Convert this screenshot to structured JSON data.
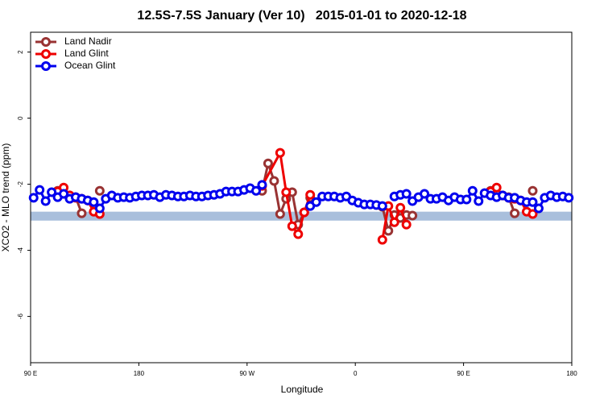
{
  "chart_data": {
    "type": "line",
    "title": "12.5S-7.5S January (Ver 10)   2015-01-01 to 2020-12-18",
    "xlabel": "Longitude",
    "ylabel": "XCO2 - MLO trend (ppm)",
    "xlim": [
      90,
      540
    ],
    "ylim": [
      -7.4,
      2.6
    ],
    "xticks": [
      {
        "value": 90,
        "label": "90 E"
      },
      180,
      {
        "value": 270,
        "label": "90 W"
      },
      {
        "value": 360,
        "label": "0"
      },
      {
        "value": 450,
        "label": "90 E"
      },
      {
        "value": 540,
        "label": "180"
      }
    ],
    "yticks": [
      2,
      0,
      -2,
      -4,
      -6
    ],
    "legend": "top-left",
    "band": {
      "ylim": [
        -3.1,
        -2.83
      ],
      "color": "#a9bfdc"
    },
    "series": [
      {
        "name": "Land Nadir",
        "color": "#993333",
        "x": [
          112.5,
          117.5,
          122.5,
          127.5,
          132.5,
          140,
          147.5,
          220,
          282.5,
          287.5,
          292.5,
          297.5,
          302.5,
          307.5,
          312.5,
          317.5,
          322.5,
          350,
          382.5,
          387.5,
          392.5,
          397.5,
          402.5,
          407.5,
          440,
          472.5,
          477.5,
          482.5,
          487.5,
          492.5,
          500,
          507.5
        ],
        "values": [
          -2.2,
          -2.29,
          -2.34,
          -2.39,
          -2.88,
          null,
          -2.2,
          null,
          -2.2,
          -1.37,
          -1.9,
          -2.9,
          -2.44,
          -2.24,
          -3.22,
          -2.85,
          -2.41,
          null,
          -2.68,
          -3.41,
          -2.93,
          -3.02,
          -2.93,
          -2.95,
          null,
          -2.2,
          -2.29,
          -2.34,
          -2.39,
          -2.88,
          null,
          -2.2
        ]
      },
      {
        "name": "Land Glint",
        "color": "#ee0000",
        "x": [
          112.5,
          117.5,
          122.5,
          127.5,
          132.5,
          137.5,
          142.5,
          147.5,
          220,
          282.5,
          297.5,
          302.5,
          307.5,
          312.5,
          317.5,
          322.5,
          350,
          382.5,
          387.5,
          392.5,
          397.5,
          402.5,
          440,
          472.5,
          477.5,
          482.5,
          487.5,
          492.5,
          497.5,
          502.5,
          507.5
        ],
        "values": [
          -2.22,
          -2.1,
          -2.34,
          -2.41,
          -2.44,
          -2.49,
          -2.83,
          -2.9,
          null,
          -2.05,
          -1.05,
          -2.24,
          -3.27,
          -3.51,
          -2.85,
          -2.32,
          null,
          -3.68,
          -2.66,
          -3.15,
          -2.71,
          -3.22,
          null,
          -2.22,
          -2.1,
          -2.34,
          -2.41,
          -2.44,
          -2.49,
          -2.83,
          -2.9
        ]
      },
      {
        "name": "Ocean Glint",
        "color": "#0000ee",
        "x": [
          92.5,
          97.5,
          102.5,
          107.5,
          112.5,
          117.5,
          122.5,
          127.5,
          132.5,
          137.5,
          142.5,
          147.5,
          152.5,
          157.5,
          162.5,
          167.5,
          172.5,
          177.5,
          182.5,
          187.5,
          192.5,
          197.5,
          202.5,
          207.5,
          212.5,
          217.5,
          222.5,
          227.5,
          232.5,
          237.5,
          242.5,
          247.5,
          252.5,
          257.5,
          262.5,
          267.5,
          272.5,
          277.5,
          282.5,
          300,
          322.5,
          327.5,
          332.5,
          337.5,
          342.5,
          347.5,
          352.5,
          357.5,
          362.5,
          367.5,
          372.5,
          377.5,
          382.5,
          387.5,
          392.5,
          397.5,
          402.5,
          407.5,
          412.5,
          417.5,
          422.5,
          427.5,
          432.5,
          437.5,
          442.5,
          447.5,
          452.5,
          457.5,
          462.5,
          467.5,
          472.5,
          477.5,
          482.5,
          487.5,
          492.5,
          497.5,
          502.5,
          507.5,
          512.5,
          517.5,
          522.5,
          527.5,
          532.5,
          537.5
        ],
        "values": [
          -2.41,
          -2.17,
          -2.51,
          -2.24,
          -2.39,
          -2.29,
          -2.44,
          -2.39,
          -2.44,
          -2.49,
          -2.54,
          -2.73,
          -2.44,
          -2.34,
          -2.41,
          -2.39,
          -2.41,
          -2.37,
          -2.34,
          -2.34,
          -2.32,
          -2.39,
          -2.32,
          -2.34,
          -2.37,
          -2.37,
          -2.34,
          -2.37,
          -2.37,
          -2.34,
          -2.32,
          -2.29,
          -2.22,
          -2.22,
          -2.22,
          -2.17,
          -2.12,
          -2.2,
          -2.02,
          null,
          -2.66,
          -2.54,
          -2.37,
          -2.37,
          -2.37,
          -2.41,
          -2.37,
          -2.49,
          -2.56,
          -2.61,
          -2.61,
          -2.63,
          -2.66,
          null,
          -2.37,
          -2.32,
          -2.29,
          -2.51,
          -2.39,
          -2.29,
          -2.44,
          -2.44,
          -2.39,
          -2.49,
          -2.39,
          -2.46,
          -2.46,
          -2.2,
          -2.51,
          -2.27,
          -2.34,
          -2.39,
          -2.34,
          -2.41,
          -2.41,
          -2.49,
          -2.54,
          -2.54,
          -2.73,
          -2.41,
          -2.34,
          -2.39,
          -2.37,
          -2.41
        ]
      }
    ]
  }
}
